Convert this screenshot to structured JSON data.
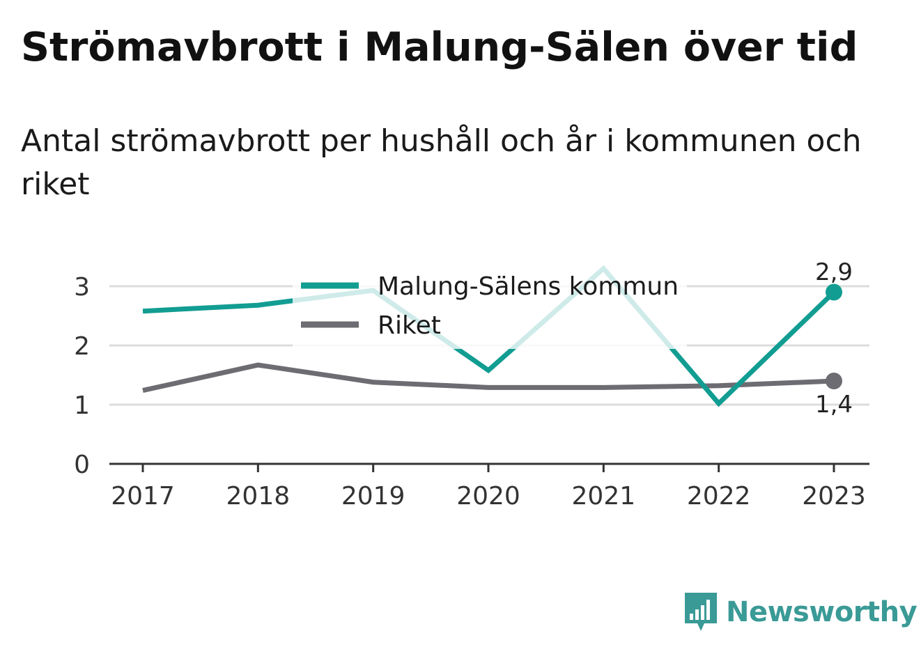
{
  "title": "Strömavbrott i Malung-Sälen över tid",
  "subtitle": "Antal strömavbrott per hushåll och år i kommunen och riket",
  "brand": {
    "name": "Newsworthy",
    "icon": "newsworthy-logo-icon",
    "color": "#3a9a96"
  },
  "chart_data": {
    "type": "line",
    "x": [
      "2017",
      "2018",
      "2019",
      "2020",
      "2021",
      "2022",
      "2023"
    ],
    "ylim": [
      0,
      3.6
    ],
    "yticks": [
      "0",
      "1",
      "2",
      "3"
    ],
    "grid": true,
    "legend_position": "top-center",
    "series": [
      {
        "name": "Malung-Sälens kommun",
        "color": "#129d92",
        "values": [
          2.58,
          2.68,
          2.93,
          1.58,
          3.3,
          1.02,
          2.9
        ],
        "end_label": "2,9"
      },
      {
        "name": "Riket",
        "color": "#6d6c72",
        "values": [
          1.24,
          1.67,
          1.38,
          1.29,
          1.29,
          1.32,
          1.4
        ],
        "end_label": "1,4"
      }
    ]
  }
}
